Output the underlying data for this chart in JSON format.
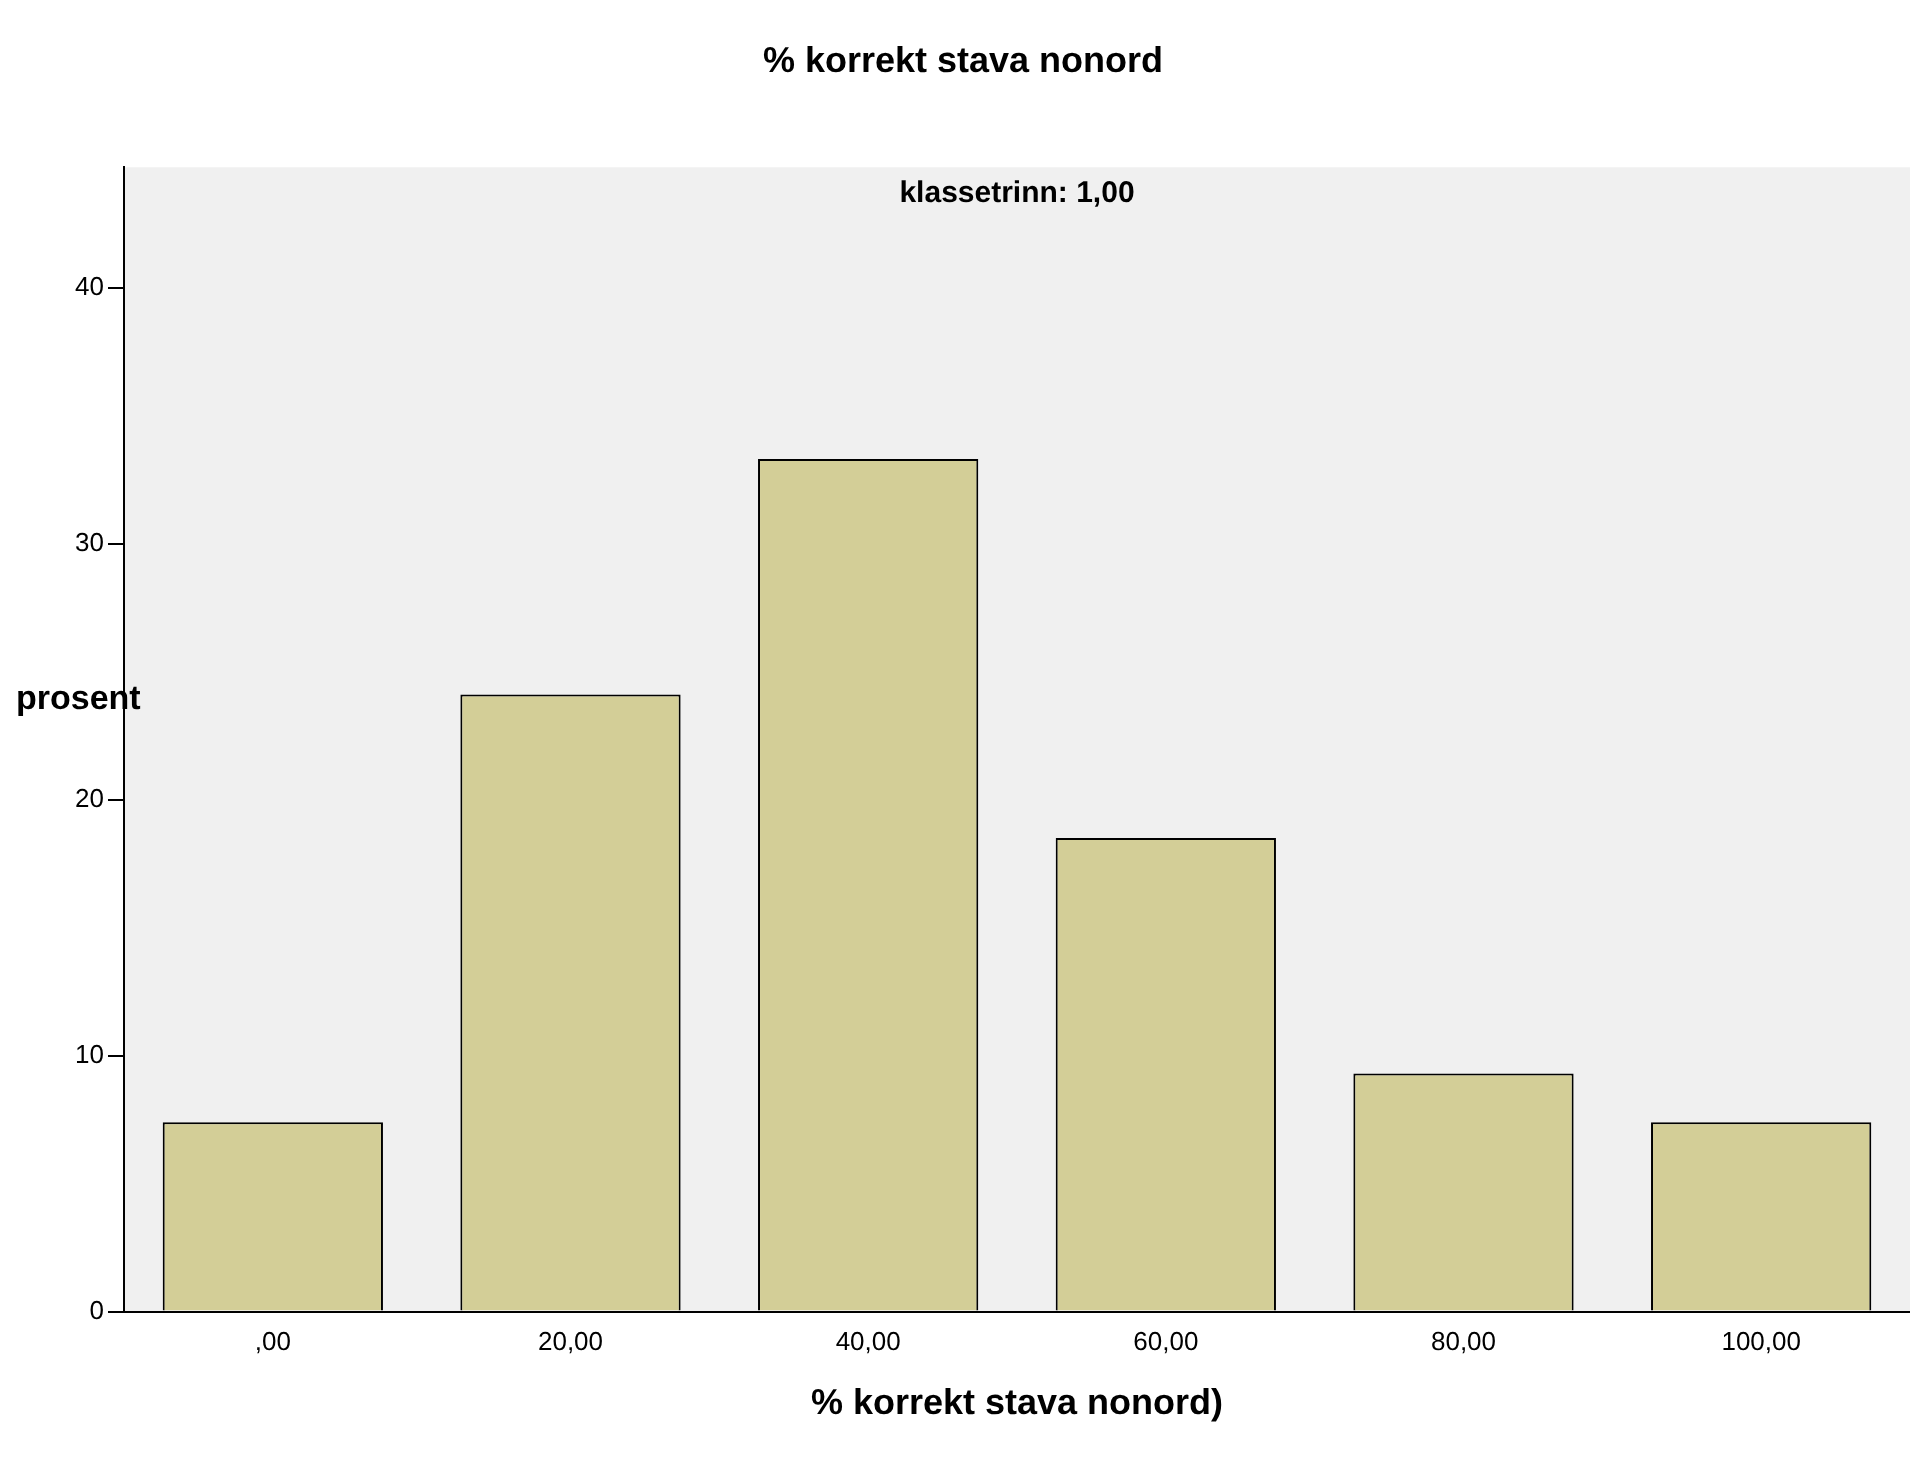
{
  "chart_data": {
    "type": "bar",
    "title": "% korrekt stava nonord",
    "xlabel": "% korrekt stava nonord)",
    "ylabel": "prosent",
    "annotations": [
      "klassetrinn: 1,00"
    ],
    "categories": [
      ",00",
      "20,00",
      "40,00",
      "60,00",
      "80,00",
      "100,00"
    ],
    "values": [
      7.4,
      24.1,
      33.3,
      18.5,
      9.3,
      7.4
    ],
    "color": "#d3ce97",
    "ylim": [
      0,
      44.7
    ],
    "yticks": [
      0,
      10,
      20,
      30,
      40
    ],
    "grid": false,
    "legend": false
  }
}
